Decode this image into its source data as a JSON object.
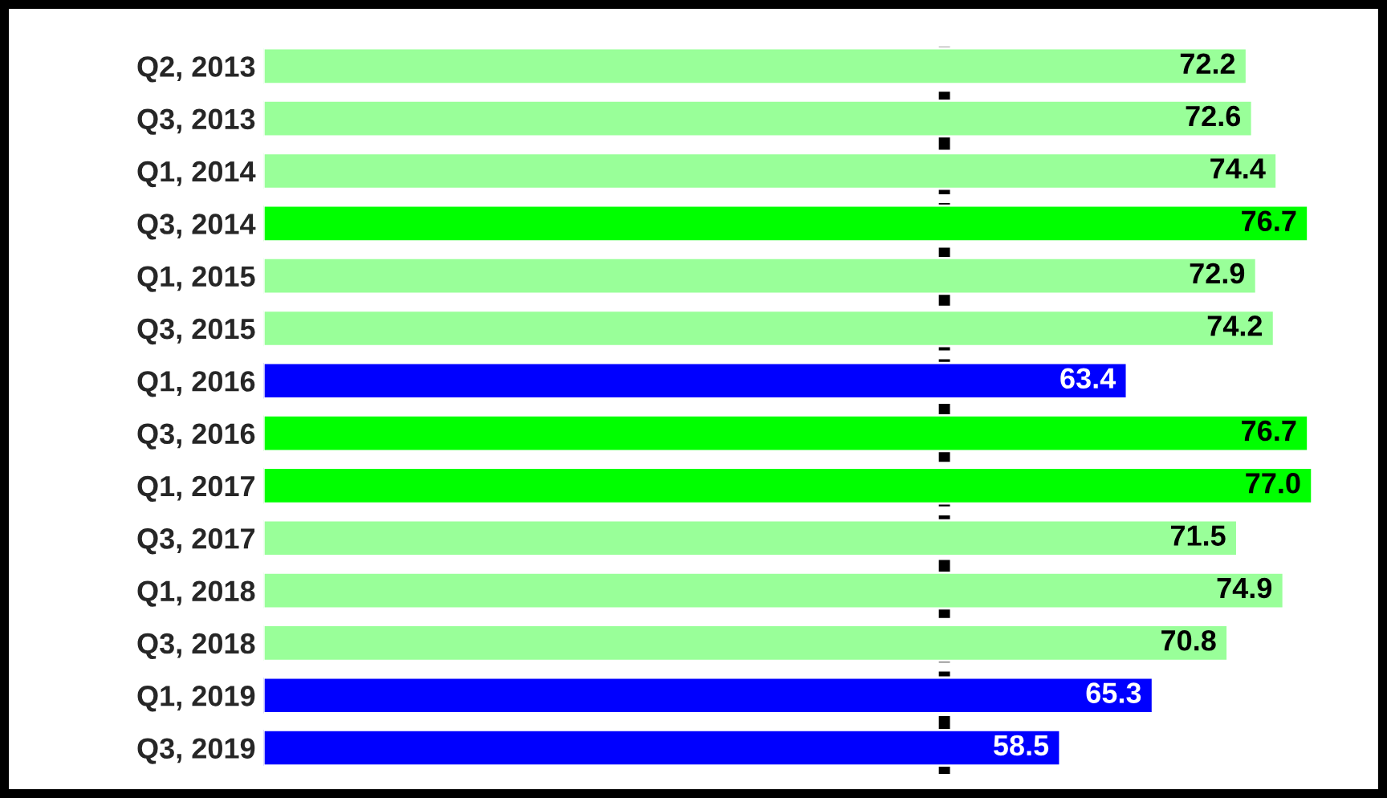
{
  "chart_data": {
    "type": "bar",
    "orientation": "horizontal",
    "categories": [
      "Q2, 2013",
      "Q3, 2013",
      "Q1, 2014",
      "Q3, 2014",
      "Q1, 2015",
      "Q3, 2015",
      "Q1, 2016",
      "Q3, 2016",
      "Q1, 2017",
      "Q3, 2017",
      "Q1, 2018",
      "Q3, 2018",
      "Q1, 2019",
      "Q3, 2019"
    ],
    "values": [
      72.2,
      72.6,
      74.4,
      76.7,
      72.9,
      74.2,
      63.4,
      76.7,
      77.0,
      71.5,
      74.9,
      70.8,
      65.3,
      58.5
    ],
    "value_labels": [
      "72.2",
      "72.6",
      "74.4",
      "76.7",
      "72.9",
      "74.2",
      "63.4",
      "76.7",
      "77.0",
      "71.5",
      "74.9",
      "70.8",
      "65.3",
      "58.5"
    ],
    "colors": [
      "#99ff99",
      "#99ff99",
      "#99ff99",
      "#00ff00",
      "#99ff99",
      "#99ff99",
      "#0000ff",
      "#00ff00",
      "#00ff00",
      "#99ff99",
      "#99ff99",
      "#99ff99",
      "#0000ff",
      "#0000ff"
    ],
    "ref_lines": [
      {
        "axis": "x",
        "value": 50,
        "color": "#000000",
        "line_style": "dashed"
      }
    ],
    "tick_labels": "y",
    "grid": false,
    "legend": false
  }
}
